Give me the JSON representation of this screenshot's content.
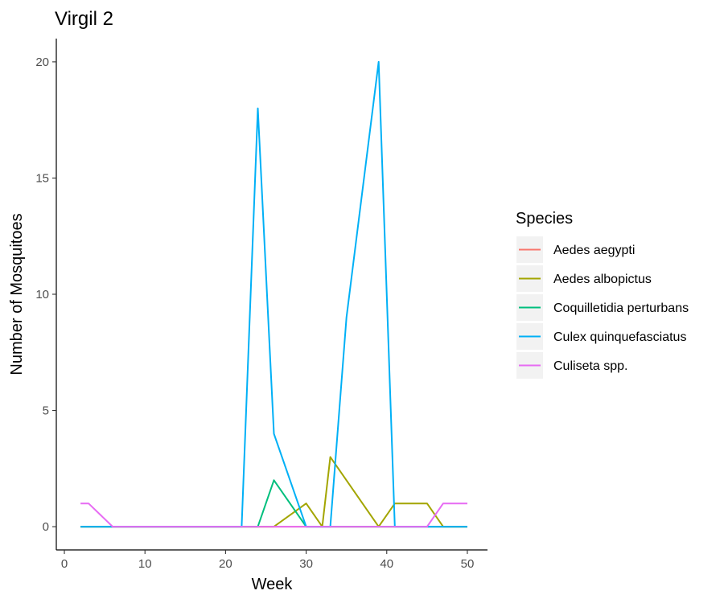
{
  "chart_data": {
    "type": "line",
    "title": "Virgil 2",
    "xlabel": "Week",
    "ylabel": "Number of Mosquitoes",
    "xlim": [
      -1,
      52.5
    ],
    "ylim": [
      -1,
      21
    ],
    "xticks": [
      0,
      10,
      20,
      30,
      40,
      50
    ],
    "yticks": [
      0,
      5,
      10,
      15,
      20
    ],
    "grid": false,
    "legend": {
      "title": "Species",
      "position": "right"
    },
    "series": [
      {
        "name": "Aedes aegypti",
        "color": "#F8766D",
        "x": [
          2,
          50
        ],
        "y": [
          0,
          0
        ]
      },
      {
        "name": "Aedes albopictus",
        "color": "#A3A500",
        "x": [
          2,
          26,
          30,
          32,
          33,
          39,
          41,
          45,
          47,
          50
        ],
        "y": [
          0,
          0,
          1,
          0,
          3,
          0,
          1,
          1,
          0,
          0
        ]
      },
      {
        "name": "Coquilletidia perturbans",
        "color": "#00BF7D",
        "x": [
          2,
          24,
          26,
          30,
          50
        ],
        "y": [
          0,
          0,
          2,
          0,
          0
        ]
      },
      {
        "name": "Culex quinquefasciatus",
        "color": "#00B0F6",
        "x": [
          2,
          22,
          24,
          26,
          30,
          33,
          35,
          39,
          41,
          50
        ],
        "y": [
          0,
          0,
          18,
          4,
          0,
          0,
          9,
          20,
          0,
          0
        ]
      },
      {
        "name": "Culiseta spp.",
        "color": "#E76BF3",
        "x": [
          2,
          3,
          6,
          45,
          47,
          50
        ],
        "y": [
          1,
          1,
          0,
          0,
          1,
          1
        ]
      }
    ]
  }
}
